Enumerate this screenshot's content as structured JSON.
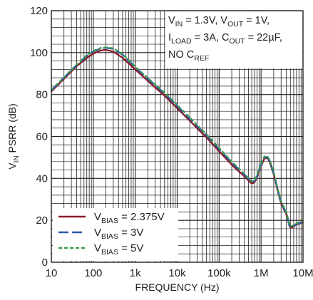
{
  "chart_data": {
    "type": "line",
    "title": "",
    "xlabel": "FREQUENCY (Hz)",
    "ylabel": {
      "main": "V",
      "sub": "IN",
      "rest": " PSRR (dB)"
    },
    "x_scale": "log",
    "xlim": [
      10,
      10000000
    ],
    "ylim": [
      0,
      120
    ],
    "x_ticks": [
      10,
      100,
      1000,
      10000,
      100000,
      1000000,
      10000000
    ],
    "x_tick_labels": [
      "10",
      "100",
      "1k",
      "10k",
      "100k",
      "1M",
      "10M"
    ],
    "y_ticks": [
      0,
      20,
      40,
      60,
      80,
      100,
      120
    ],
    "y_tick_labels": [
      "0",
      "20",
      "40",
      "60",
      "80",
      "100",
      "120"
    ],
    "grid": true,
    "conditions": [
      [
        {
          "t": "V"
        },
        {
          "t": "IN",
          "sub": true
        },
        {
          "t": " = 1.3V, V"
        },
        {
          "t": "OUT",
          "sub": true
        },
        {
          "t": " = 1V,"
        }
      ],
      [
        {
          "t": "I"
        },
        {
          "t": "LOAD",
          "sub": true
        },
        {
          "t": " = 3A, C"
        },
        {
          "t": "OUT",
          "sub": true
        },
        {
          "t": " = 22µF,"
        }
      ],
      [
        {
          "t": "NO C"
        },
        {
          "t": "REF",
          "sub": true
        }
      ]
    ],
    "legend_position": "bottom-left",
    "series": [
      {
        "name": {
          "main": "V",
          "sub": "BIAS",
          "rest": " = 2.375V"
        },
        "color": "#8b1a2b",
        "dash": "solid",
        "points": [
          [
            10,
            81.5
          ],
          [
            20,
            87.5
          ],
          [
            40,
            93.5
          ],
          [
            70,
            97.5
          ],
          [
            100,
            99.5
          ],
          [
            150,
            101
          ],
          [
            200,
            101.3
          ],
          [
            300,
            100.5
          ],
          [
            500,
            97.5
          ],
          [
            1000,
            92
          ],
          [
            2000,
            86.5
          ],
          [
            5000,
            79.5
          ],
          [
            10000,
            73.5
          ],
          [
            20000,
            67.5
          ],
          [
            50000,
            59.5
          ],
          [
            100000,
            53
          ],
          [
            200000,
            46.5
          ],
          [
            400000,
            41
          ],
          [
            600000,
            37.5
          ],
          [
            700000,
            38.2
          ],
          [
            800000,
            40.5
          ],
          [
            1000000,
            46
          ],
          [
            1200000,
            49.5
          ],
          [
            1400000,
            49.8
          ],
          [
            1600000,
            48
          ],
          [
            2000000,
            42
          ],
          [
            2500000,
            34
          ],
          [
            3000000,
            28
          ],
          [
            4000000,
            23
          ],
          [
            4800000,
            17
          ],
          [
            5500000,
            16.5
          ],
          [
            7000000,
            18
          ],
          [
            10000000,
            19
          ]
        ]
      },
      {
        "name": {
          "main": "V",
          "sub": "BIAS",
          "rest": " = 3V"
        },
        "color": "#2e5aa8",
        "dash": "long",
        "points": [
          [
            10,
            82
          ],
          [
            20,
            88
          ],
          [
            40,
            94
          ],
          [
            70,
            98.5
          ],
          [
            100,
            100.5
          ],
          [
            150,
            102
          ],
          [
            200,
            102.3
          ],
          [
            300,
            101.8
          ],
          [
            500,
            99
          ],
          [
            1000,
            93
          ],
          [
            2000,
            87.5
          ],
          [
            5000,
            80.5
          ],
          [
            10000,
            74.5
          ],
          [
            20000,
            68.5
          ],
          [
            50000,
            60.5
          ],
          [
            100000,
            54
          ],
          [
            200000,
            47.5
          ],
          [
            400000,
            41.8
          ],
          [
            600000,
            38.2
          ],
          [
            700000,
            38.8
          ],
          [
            800000,
            41
          ],
          [
            1000000,
            46.5
          ],
          [
            1200000,
            50
          ],
          [
            1400000,
            50.2
          ],
          [
            1600000,
            48.5
          ],
          [
            2000000,
            42.5
          ],
          [
            2500000,
            34.5
          ],
          [
            3000000,
            28.5
          ],
          [
            4000000,
            23.5
          ],
          [
            4800000,
            17
          ],
          [
            5500000,
            16.8
          ],
          [
            7000000,
            18.2
          ],
          [
            10000000,
            19.3
          ]
        ]
      },
      {
        "name": {
          "main": "V",
          "sub": "BIAS",
          "rest": " = 5V"
        },
        "color": "#3a9a4c",
        "dash": "short",
        "points": [
          [
            10,
            82.2
          ],
          [
            20,
            88.2
          ],
          [
            40,
            94.3
          ],
          [
            70,
            98.8
          ],
          [
            100,
            100.8
          ],
          [
            150,
            102.2
          ],
          [
            200,
            102.5
          ],
          [
            300,
            102
          ],
          [
            500,
            99.3
          ],
          [
            1000,
            93.3
          ],
          [
            2000,
            87.8
          ],
          [
            5000,
            81
          ],
          [
            10000,
            75
          ],
          [
            20000,
            69
          ],
          [
            50000,
            61
          ],
          [
            100000,
            54.5
          ],
          [
            200000,
            48
          ],
          [
            400000,
            42.2
          ],
          [
            600000,
            38.6
          ],
          [
            700000,
            39.2
          ],
          [
            800000,
            41.4
          ],
          [
            1000000,
            47
          ],
          [
            1200000,
            50.5
          ],
          [
            1400000,
            50.6
          ],
          [
            1600000,
            48.8
          ],
          [
            2000000,
            43
          ],
          [
            2500000,
            35
          ],
          [
            3000000,
            29
          ],
          [
            4000000,
            24
          ],
          [
            4800000,
            17.5
          ],
          [
            5500000,
            17.2
          ],
          [
            7000000,
            18.6
          ],
          [
            10000000,
            19.6
          ]
        ]
      }
    ]
  },
  "colors": {
    "grid": "#231f20",
    "axis": "#231f20",
    "text": "#231f20",
    "background": "#ffffff"
  }
}
